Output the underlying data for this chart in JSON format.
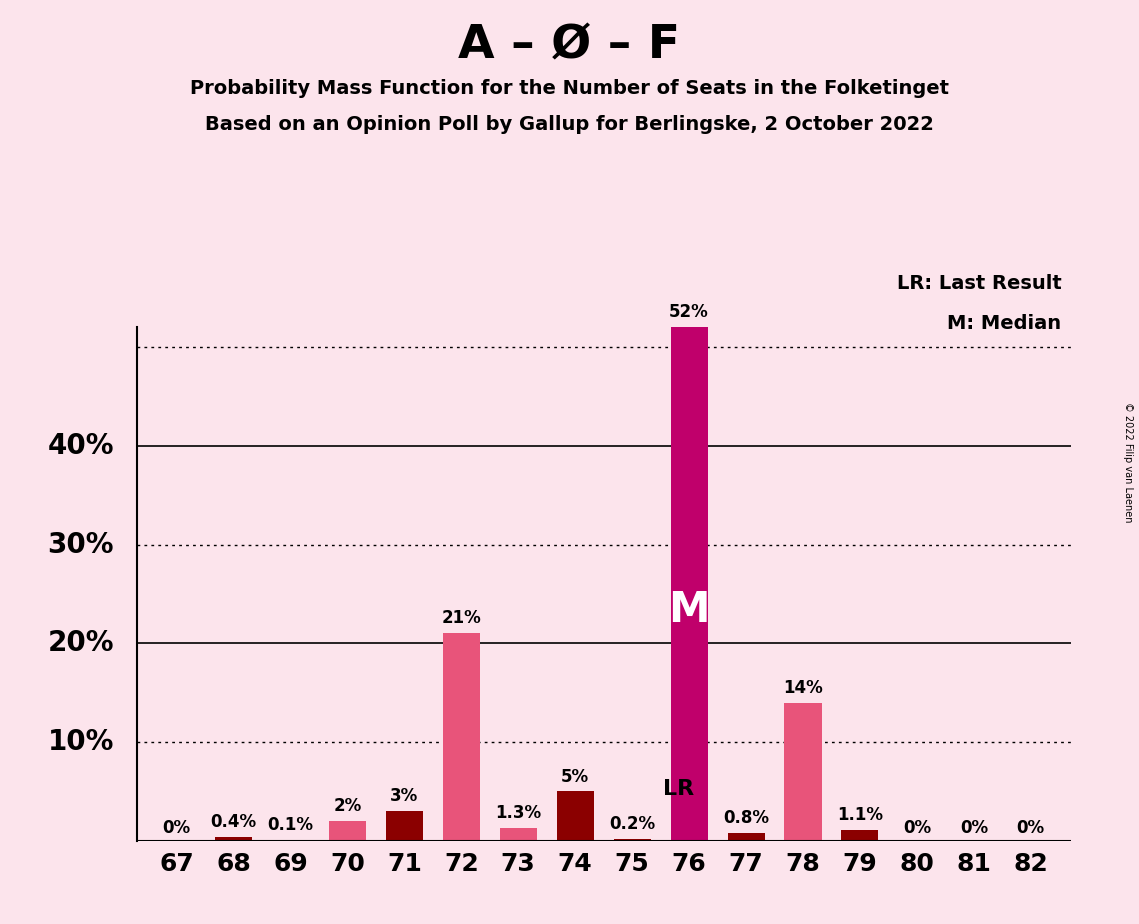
{
  "title_main": "A – Ø – F",
  "title_line1": "Probability Mass Function for the Number of Seats in the Folketinget",
  "title_line2": "Based on an Opinion Poll by Gallup for Berlingske, 2 October 2022",
  "copyright": "© 2022 Filip van Laenen",
  "seats": [
    67,
    68,
    69,
    70,
    71,
    72,
    73,
    74,
    75,
    76,
    77,
    78,
    79,
    80,
    81,
    82
  ],
  "values": [
    0.0,
    0.4,
    0.1,
    2.0,
    3.0,
    21.0,
    1.3,
    5.0,
    0.2,
    52.0,
    0.8,
    14.0,
    1.1,
    0.0,
    0.0,
    0.0
  ],
  "labels": [
    "0%",
    "0.4%",
    "0.1%",
    "2%",
    "3%",
    "21%",
    "1.3%",
    "5%",
    "0.2%",
    "52%",
    "0.8%",
    "14%",
    "1.1%",
    "0%",
    "0%",
    "0%"
  ],
  "bar_colors": [
    "#e8547a",
    "#8b0000",
    "#8b0000",
    "#e8547a",
    "#8b0000",
    "#e8547a",
    "#e8547a",
    "#8b0000",
    "#8b0000",
    "#c0006b",
    "#8b0000",
    "#e8547a",
    "#8b0000",
    "#e8547a",
    "#e8547a",
    "#e8547a"
  ],
  "median_seat": 76,
  "lr_seat": 75,
  "median_label": "M",
  "lr_label": "LR",
  "legend_lr": "LR: Last Result",
  "legend_m": "M: Median",
  "background_color": "#fce4ec",
  "bar_pink": "#e8547a",
  "bar_darkred": "#8b0000",
  "bar_magenta": "#c0006b",
  "ylim": [
    0,
    58
  ],
  "dotted_lines": [
    10,
    30,
    50
  ],
  "solid_lines": [
    20,
    40
  ],
  "ylabel_labels": [
    "10%",
    "20%",
    "30%",
    "40%"
  ],
  "ylabel_values": [
    10,
    20,
    30,
    40
  ]
}
